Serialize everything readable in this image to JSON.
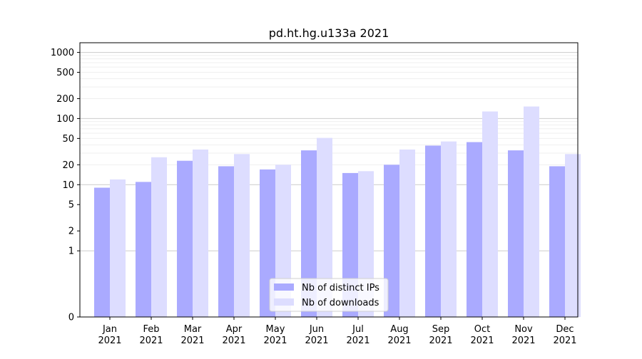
{
  "chart_data": {
    "type": "bar",
    "title": "pd.ht.hg.u133a 2021",
    "scale": "symlog",
    "categories": [
      {
        "month": "Jan",
        "year": "2021"
      },
      {
        "month": "Feb",
        "year": "2021"
      },
      {
        "month": "Mar",
        "year": "2021"
      },
      {
        "month": "Apr",
        "year": "2021"
      },
      {
        "month": "May",
        "year": "2021"
      },
      {
        "month": "Jun",
        "year": "2021"
      },
      {
        "month": "Jul",
        "year": "2021"
      },
      {
        "month": "Aug",
        "year": "2021"
      },
      {
        "month": "Sep",
        "year": "2021"
      },
      {
        "month": "Oct",
        "year": "2021"
      },
      {
        "month": "Nov",
        "year": "2021"
      },
      {
        "month": "Dec",
        "year": "2021"
      }
    ],
    "series": [
      {
        "name": "Nb of distinct IPs",
        "color": "#aaaaff",
        "values": [
          9,
          11,
          23,
          19,
          17,
          33,
          15,
          20,
          39,
          44,
          33,
          19
        ]
      },
      {
        "name": "Nb of downloads",
        "color": "#ddddff",
        "values": [
          12,
          26,
          34,
          29,
          20,
          51,
          16,
          34,
          45,
          128,
          152,
          29
        ]
      }
    ],
    "yticks": [
      0,
      1,
      2,
      5,
      10,
      20,
      50,
      100,
      200,
      500,
      1000
    ],
    "ylim": [
      0,
      1400
    ],
    "grid": true,
    "legend": "bottom-center"
  }
}
